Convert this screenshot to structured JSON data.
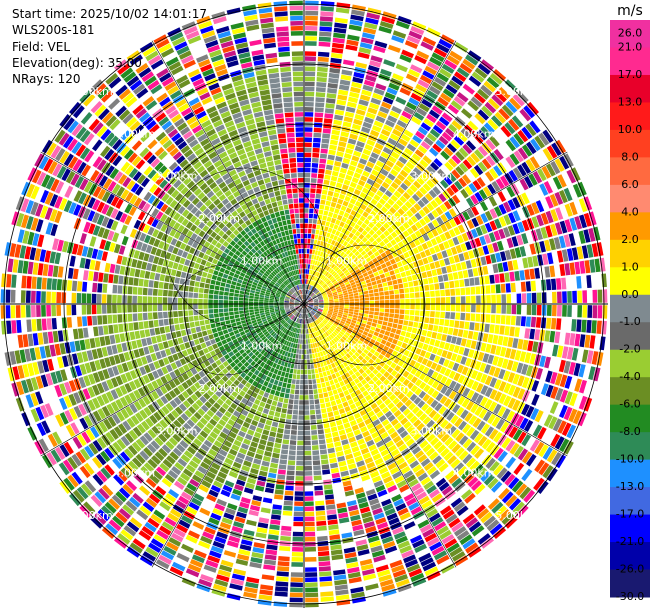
{
  "header": {
    "start_time": "Start time: 2025/10/02 14:01:17",
    "instrument": "WLS200s-181",
    "field": "Field: VEL",
    "elevation": "Elevation(deg): 35.00",
    "nrays": "NRays: 120"
  },
  "colorbar": {
    "unit": "m/s",
    "ticks": [
      "26.0",
      "21.0",
      "17.0",
      "13.0",
      "10.0",
      "8.0",
      "6.0",
      "4.0",
      "2.0",
      "1.0",
      "0.0",
      "-1.0",
      "-2.0",
      "-4.0",
      "-6.0",
      "-8.0",
      "-10.0",
      "-13.0",
      "-17.0",
      "-21.0",
      "-26.0",
      "-30.0"
    ],
    "colors": [
      "#f030a0",
      "#ff2a90",
      "#e8002a",
      "#ff1a1a",
      "#ff4020",
      "#ff6a40",
      "#ff8a70",
      "#ff9a00",
      "#ffd200",
      "#ffff00",
      "#7f8a90",
      "#6a6a6a",
      "#9acd32",
      "#6b8e23",
      "#228b22",
      "#2e8b57",
      "#1e90ff",
      "#4169e1",
      "#0000ff",
      "#0000aa",
      "#191970"
    ]
  },
  "chart_data": {
    "type": "heatmap",
    "title": "",
    "field": "VEL",
    "units": "m/s",
    "elevation_deg": 35.0,
    "n_rays": 120,
    "range_rings_km": [
      1,
      2,
      3,
      4,
      5
    ],
    "range_labels": [
      "1.00km",
      "2.00km",
      "3.00km",
      "4.00km",
      "5.00km"
    ],
    "color_range": [
      -30,
      26
    ],
    "pattern": "Positive radial velocities (yellow/orange, 1-8 m/s) on the east side, negative (green, -1 to -6 m/s) on the west side within ~3 km; noisy multi-colored returns beyond ~3.5 km."
  }
}
